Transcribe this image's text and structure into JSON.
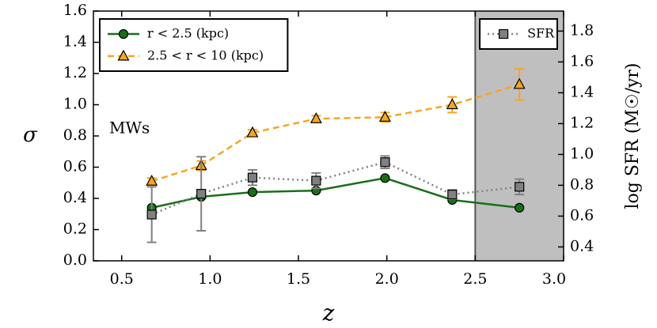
{
  "chart_data": {
    "type": "line",
    "x_label": "z",
    "y_label": "σ",
    "y2_label": "log SFR (M☉/yr)",
    "annotation": "MWs",
    "x": [
      0.67,
      0.95,
      1.24,
      1.6,
      1.99,
      2.37,
      2.75
    ],
    "series": [
      {
        "name": "r < 2.5 (kpc)",
        "color": "#1a6e1a",
        "marker": "circle",
        "linestyle": "solid",
        "legend": "upper left",
        "values": [
          0.34,
          0.41,
          0.44,
          0.45,
          0.53,
          0.39,
          0.34
        ]
      },
      {
        "name": "2.5 < r < 10 (kpc)",
        "color": "#f5a623",
        "marker": "triangle",
        "linestyle": "dashed",
        "legend": "upper left",
        "values": [
          0.51,
          0.61,
          0.82,
          0.91,
          0.92,
          1.0,
          1.13
        ],
        "errors": [
          0.02,
          0.03,
          0.02,
          0.02,
          0.03,
          0.05,
          0.1
        ]
      },
      {
        "name": "SFR",
        "color": "#808080",
        "marker": "square",
        "linestyle": "dotted",
        "legend": "upper right",
        "axis": "y2",
        "values": [
          0.61,
          0.745,
          0.85,
          0.83,
          0.95,
          0.74,
          0.79
        ],
        "errors": [
          0.18,
          0.24,
          0.05,
          0.05,
          0.04,
          0.03,
          0.05
        ]
      }
    ],
    "shade": {
      "from": 2.5,
      "to": 3.0,
      "color": "#bfbfbf"
    },
    "xlim": [
      0.34,
      3.0
    ],
    "xticks": [
      0.5,
      {
        "value": 1,
        "label": "1.0"
      },
      1.5,
      {
        "value": 2,
        "label": "2.0"
      },
      2.5,
      {
        "value": 3,
        "label": "3.0"
      }
    ],
    "ylim": [
      0,
      1.6
    ],
    "yticks": [
      {
        "value": 0,
        "label": "0.0"
      },
      0.2,
      0.4,
      0.6,
      0.8,
      {
        "value": 1,
        "label": "1.0"
      },
      1.2,
      1.4,
      1.6
    ],
    "y2lim": [
      0.31,
      1.93
    ],
    "y2ticks": [
      0.4,
      0.6,
      0.8,
      {
        "value": 1,
        "label": "1.0"
      },
      1.2,
      1.4,
      1.6,
      1.8
    ]
  }
}
